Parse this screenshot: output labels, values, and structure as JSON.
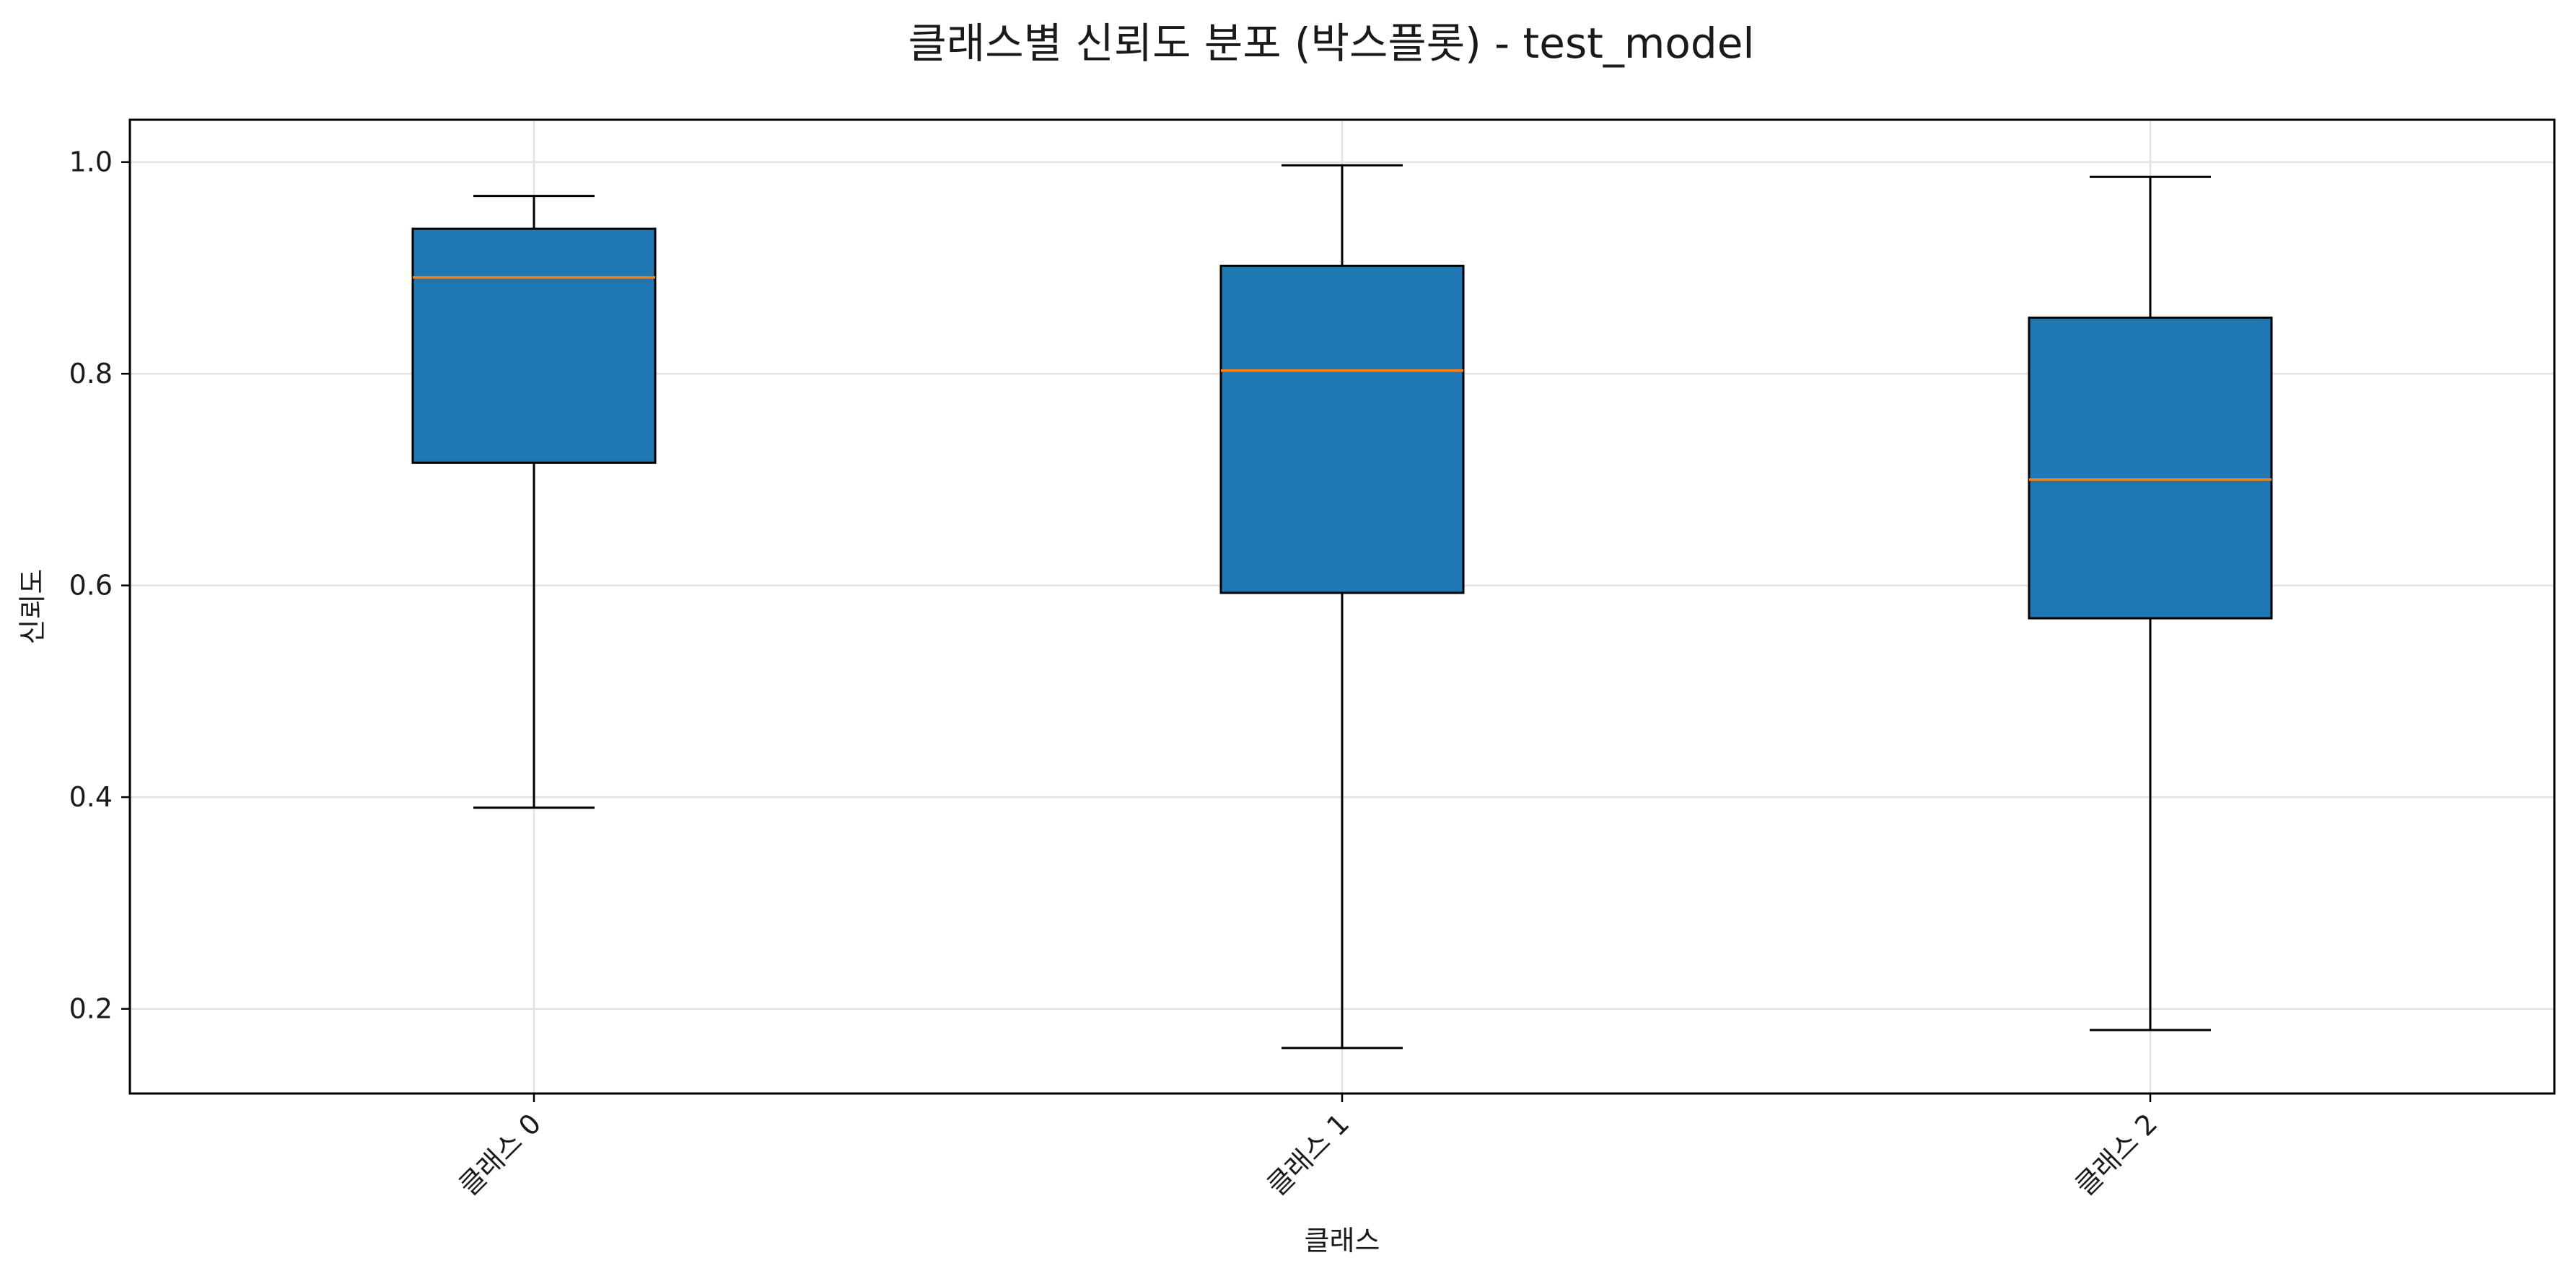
{
  "chart_data": {
    "type": "box",
    "title": "클래스별 신뢰도 분포 (박스플롯) - test_model",
    "xlabel": "클래스",
    "ylabel": "신뢰도",
    "ylim": [
      0.12,
      1.04
    ],
    "yticks": [
      0.2,
      0.4,
      0.6,
      0.8,
      1.0
    ],
    "ytick_labels": [
      "0.2",
      "0.4",
      "0.6",
      "0.8",
      "1.0"
    ],
    "grid": true,
    "categories": [
      "클래스 0",
      "클래스 1",
      "클래스 2"
    ],
    "boxes": [
      {
        "whisker_low": 0.39,
        "q1": 0.716,
        "median": 0.891,
        "q3": 0.937,
        "whisker_high": 0.968
      },
      {
        "whisker_low": 0.163,
        "q1": 0.593,
        "median": 0.803,
        "q3": 0.902,
        "whisker_high": 0.997
      },
      {
        "whisker_low": 0.18,
        "q1": 0.569,
        "median": 0.7,
        "q3": 0.853,
        "whisker_high": 0.986
      }
    ],
    "colors": {
      "box_fill": "#1f77b4",
      "median": "#ff7f0e",
      "grid": "#e3e3e3"
    }
  }
}
